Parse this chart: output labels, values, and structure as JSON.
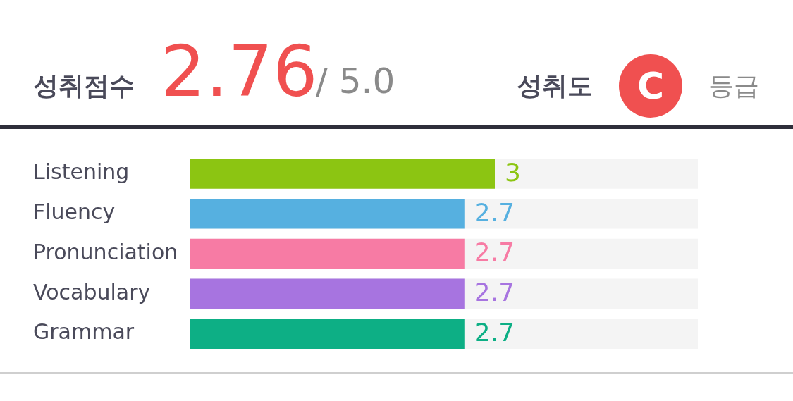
{
  "chart_data": {
    "type": "bar",
    "orientation": "horizontal",
    "title": "성취점수",
    "annotations": [
      "2.76",
      "/ 5.0",
      "성취도",
      "C",
      "등급"
    ],
    "categories": [
      "Listening",
      "Fluency",
      "Pronunciation",
      "Vocabulary",
      "Grammar"
    ],
    "values": [
      3,
      2.7,
      2.7,
      2.7,
      2.7
    ],
    "colors": [
      "#8cc512",
      "#56b0e0",
      "#f77ba4",
      "#a774e0",
      "#0daf85"
    ],
    "xlim": [
      0,
      5
    ],
    "tick_labels": "y",
    "data_labels": true
  }
}
